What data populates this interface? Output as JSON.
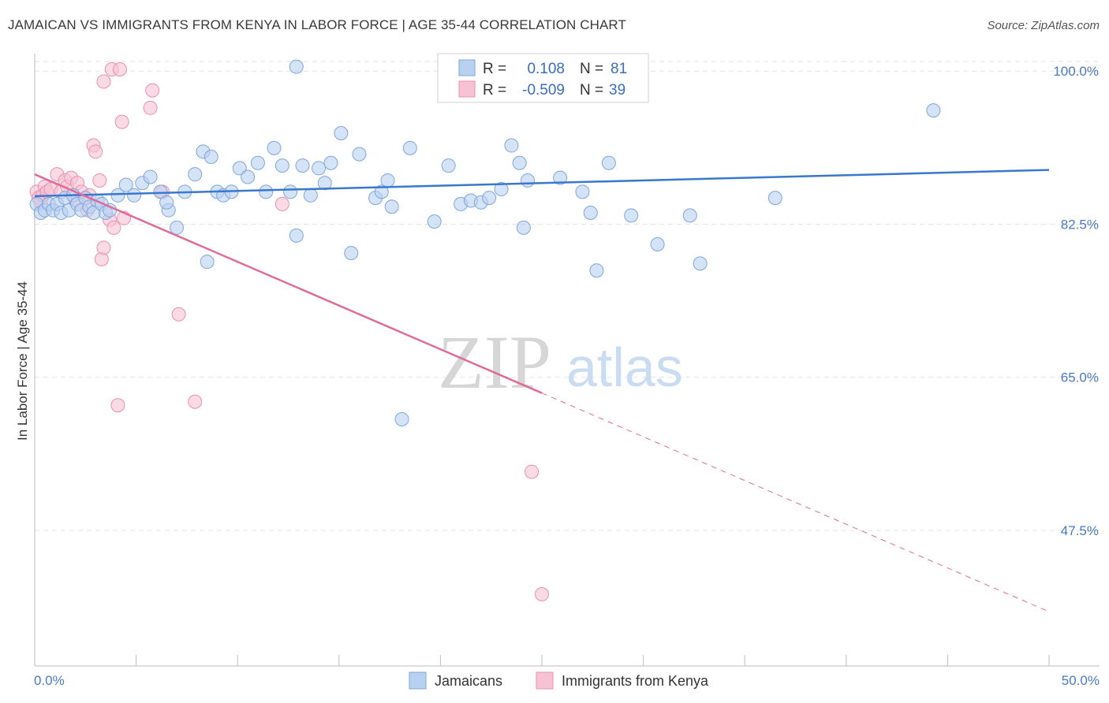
{
  "title": "JAMAICAN VS IMMIGRANTS FROM KENYA IN LABOR FORCE | AGE 35-44 CORRELATION CHART",
  "source": "Source: ZipAtlas.com",
  "watermark": {
    "zip": "ZIP",
    "atlas": "atlas"
  },
  "colors": {
    "blue_fill": "#b9d1f0",
    "blue_stroke": "#7fa6dc",
    "blue_line": "#3a78d0",
    "pink_fill": "#f7c3d4",
    "pink_stroke": "#ec8fae",
    "pink_line": "#e06b98",
    "tick_text": "#4a7ac4",
    "grid": "#e2e2e2"
  },
  "legend": {
    "rows": [
      {
        "r_label": "R =",
        "r_value": "0.108",
        "n_label": "N =",
        "n_value": "81"
      },
      {
        "r_label": "R =",
        "r_value": "-0.509",
        "n_label": "N =",
        "n_value": "39"
      }
    ]
  },
  "bottom_legend": [
    "Jamaicans",
    "Immigrants from Kenya"
  ],
  "chart_data": {
    "type": "scatter",
    "title": "JAMAICAN VS IMMIGRANTS FROM KENYA IN LABOR FORCE | AGE 35-44 CORRELATION CHART",
    "xlabel": "",
    "ylabel": "In Labor Force | Age 35-44",
    "xlim": [
      0,
      50
    ],
    "ylim": [
      32,
      102
    ],
    "x_tick_labels": [
      "0.0%",
      "50.0%"
    ],
    "y_ticks": [
      47.5,
      65.0,
      82.5,
      100.0
    ],
    "y_tick_labels": [
      "47.5%",
      "65.0%",
      "82.5%",
      "100.0%"
    ],
    "grid": true,
    "legend_position": "top-center",
    "series": [
      {
        "name": "Jamaicans",
        "r": 0.108,
        "n": 81,
        "trend": {
          "x": [
            0,
            50
          ],
          "y": [
            85.7,
            88.7
          ]
        },
        "points": [
          [
            0.1,
            84.8
          ],
          [
            0.3,
            83.8
          ],
          [
            0.5,
            84.1
          ],
          [
            0.7,
            84.8
          ],
          [
            0.9,
            84.1
          ],
          [
            1.1,
            84.8
          ],
          [
            1.3,
            83.8
          ],
          [
            1.5,
            85.5
          ],
          [
            1.7,
            84.1
          ],
          [
            1.9,
            85.8
          ],
          [
            2.1,
            84.8
          ],
          [
            2.3,
            84.1
          ],
          [
            2.5,
            85.5
          ],
          [
            2.7,
            84.5
          ],
          [
            2.9,
            83.8
          ],
          [
            3.1,
            85.2
          ],
          [
            3.3,
            84.8
          ],
          [
            3.5,
            83.8
          ],
          [
            3.7,
            84.1
          ],
          [
            4.1,
            85.8
          ],
          [
            4.5,
            87.0
          ],
          [
            4.9,
            85.8
          ],
          [
            5.3,
            87.2
          ],
          [
            5.7,
            87.9
          ],
          [
            6.2,
            86.2
          ],
          [
            6.6,
            84.1
          ],
          [
            7.0,
            82.1
          ],
          [
            7.4,
            86.2
          ],
          [
            7.9,
            88.2
          ],
          [
            8.3,
            90.8
          ],
          [
            8.7,
            90.2
          ],
          [
            9.0,
            86.2
          ],
          [
            9.3,
            85.8
          ],
          [
            9.7,
            86.2
          ],
          [
            10.1,
            88.9
          ],
          [
            10.5,
            87.9
          ],
          [
            11.0,
            89.5
          ],
          [
            11.4,
            86.2
          ],
          [
            11.8,
            91.2
          ],
          [
            12.2,
            89.2
          ],
          [
            12.6,
            86.2
          ],
          [
            12.9,
            81.2
          ],
          [
            13.2,
            89.2
          ],
          [
            13.6,
            85.8
          ],
          [
            14.0,
            88.9
          ],
          [
            14.3,
            87.2
          ],
          [
            14.6,
            89.5
          ],
          [
            15.1,
            92.9
          ],
          [
            15.6,
            79.2
          ],
          [
            16.0,
            90.5
          ],
          [
            16.8,
            85.5
          ],
          [
            17.1,
            86.2
          ],
          [
            17.4,
            87.5
          ],
          [
            17.6,
            84.5
          ],
          [
            18.1,
            60.2
          ],
          [
            18.5,
            91.2
          ],
          [
            19.7,
            82.8
          ],
          [
            20.4,
            89.2
          ],
          [
            21.0,
            84.8
          ],
          [
            21.5,
            85.2
          ],
          [
            22.0,
            85.0
          ],
          [
            22.4,
            85.5
          ],
          [
            23.0,
            86.5
          ],
          [
            23.5,
            91.5
          ],
          [
            23.9,
            89.5
          ],
          [
            24.1,
            82.1
          ],
          [
            24.3,
            87.5
          ],
          [
            25.9,
            87.8
          ],
          [
            27.0,
            86.2
          ],
          [
            27.4,
            83.8
          ],
          [
            27.7,
            77.2
          ],
          [
            28.3,
            89.5
          ],
          [
            29.4,
            83.5
          ],
          [
            30.7,
            80.2
          ],
          [
            32.3,
            83.5
          ],
          [
            32.8,
            78.0
          ],
          [
            36.5,
            85.5
          ],
          [
            44.3,
            95.5
          ],
          [
            8.5,
            78.2
          ],
          [
            6.5,
            85.0
          ],
          [
            12.9,
            100.5
          ]
        ]
      },
      {
        "name": "Immigrants from Kenya",
        "r": -0.509,
        "n": 39,
        "trend": {
          "x": [
            0,
            50
          ],
          "y": [
            88.2,
            38.2
          ]
        },
        "trend_solid_until_x": 25,
        "points": [
          [
            0.1,
            86.2
          ],
          [
            0.2,
            85.5
          ],
          [
            0.3,
            85.0
          ],
          [
            0.4,
            85.8
          ],
          [
            0.5,
            86.8
          ],
          [
            0.6,
            86.2
          ],
          [
            0.8,
            86.5
          ],
          [
            1.1,
            88.2
          ],
          [
            1.3,
            86.2
          ],
          [
            1.5,
            87.5
          ],
          [
            1.6,
            86.8
          ],
          [
            1.8,
            87.8
          ],
          [
            2.0,
            85.2
          ],
          [
            2.1,
            87.2
          ],
          [
            2.3,
            86.2
          ],
          [
            2.6,
            84.1
          ],
          [
            2.7,
            85.8
          ],
          [
            2.9,
            91.5
          ],
          [
            3.0,
            90.8
          ],
          [
            3.2,
            87.5
          ],
          [
            3.3,
            78.5
          ],
          [
            3.4,
            79.8
          ],
          [
            3.4,
            98.8
          ],
          [
            3.7,
            83.0
          ],
          [
            3.8,
            100.2
          ],
          [
            3.9,
            82.1
          ],
          [
            4.1,
            61.8
          ],
          [
            4.2,
            100.2
          ],
          [
            4.3,
            94.2
          ],
          [
            4.4,
            83.2
          ],
          [
            5.7,
            95.8
          ],
          [
            5.8,
            97.8
          ],
          [
            6.3,
            86.2
          ],
          [
            7.1,
            72.2
          ],
          [
            7.9,
            62.2
          ],
          [
            12.2,
            84.8
          ],
          [
            23.8,
            100.2
          ],
          [
            24.5,
            54.2
          ],
          [
            25.0,
            40.2
          ]
        ]
      }
    ]
  }
}
